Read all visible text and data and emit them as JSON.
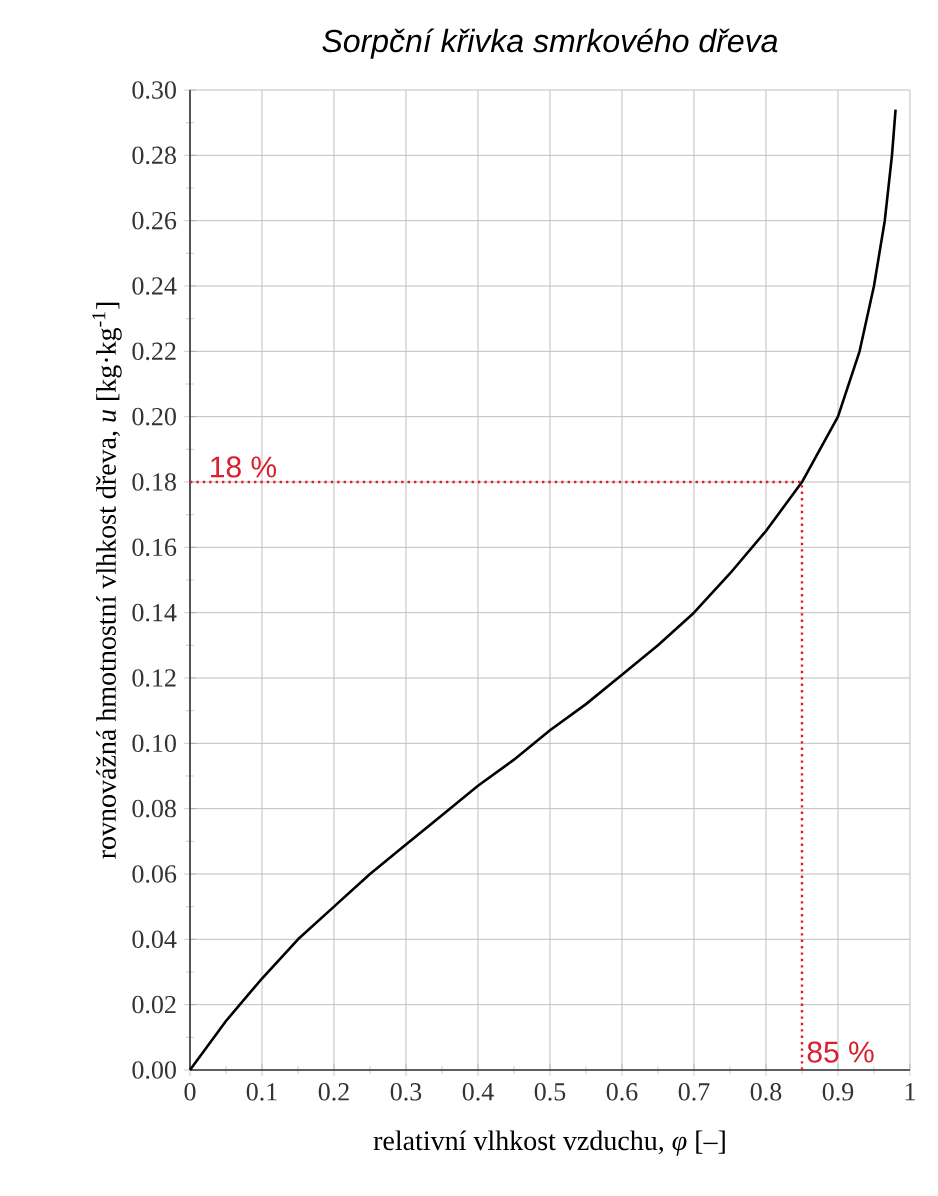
{
  "chart_data": {
    "type": "line",
    "title": "Sorpční křivka smrkového dřeva",
    "xlabel": "relativní vlhkost vzduchu, *φ* [–]",
    "ylabel": "rovnovážná hmotnostní vlhkost dřeva, *u* [kg·kg$^{-1}$]",
    "x": [
      0,
      0.05,
      0.1,
      0.15,
      0.2,
      0.25,
      0.3,
      0.35,
      0.4,
      0.45,
      0.5,
      0.55,
      0.6,
      0.65,
      0.7,
      0.75,
      0.8,
      0.85,
      0.9,
      0.93,
      0.95,
      0.965,
      0.975,
      0.98
    ],
    "series": [
      {
        "color": "#000000",
        "values": [
          0,
          0.015,
          0.028,
          0.04,
          0.05,
          0.06,
          0.069,
          0.078,
          0.087,
          0.095,
          0.104,
          0.112,
          0.121,
          0.13,
          0.14,
          0.152,
          0.165,
          0.18,
          0.2,
          0.22,
          0.24,
          0.26,
          0.28,
          0.294
        ]
      }
    ],
    "xlim": [
      0,
      1
    ],
    "ylim": [
      0,
      0.3
    ],
    "xticks": [
      0,
      0.1,
      0.2,
      0.3,
      0.4,
      0.5,
      0.6,
      0.7,
      0.8,
      0.9,
      1
    ],
    "yticks": [
      {
        "value": 0,
        "label": "0.00"
      },
      {
        "value": 0.02,
        "label": "0.02"
      },
      {
        "value": 0.04,
        "label": "0.04"
      },
      {
        "value": 0.06,
        "label": "0.06"
      },
      {
        "value": 0.08,
        "label": "0.08"
      },
      {
        "value": 0.1,
        "label": "0.10"
      },
      {
        "value": 0.12,
        "label": "0.12"
      },
      {
        "value": 0.14,
        "label": "0.14"
      },
      {
        "value": 0.16,
        "label": "0.16"
      },
      {
        "value": 0.18,
        "label": "0.18"
      },
      {
        "value": 0.2,
        "label": "0.20"
      },
      {
        "value": 0.22,
        "label": "0.22"
      },
      {
        "value": 0.24,
        "label": "0.24"
      },
      {
        "value": 0.26,
        "label": "0.26"
      },
      {
        "value": 0.28,
        "label": "0.28"
      },
      {
        "value": 0.3,
        "label": "0.30"
      }
    ],
    "ref_lines": [
      {
        "axis": "y",
        "value": 0.18,
        "label": "18 %",
        "color": "#d9202e",
        "line_style": "dotted"
      },
      {
        "axis": "x",
        "value": 0.85,
        "label": "85 %",
        "color": "#d9202e",
        "line_style": "dotted"
      }
    ],
    "grid": true,
    "line_style": "solid"
  }
}
